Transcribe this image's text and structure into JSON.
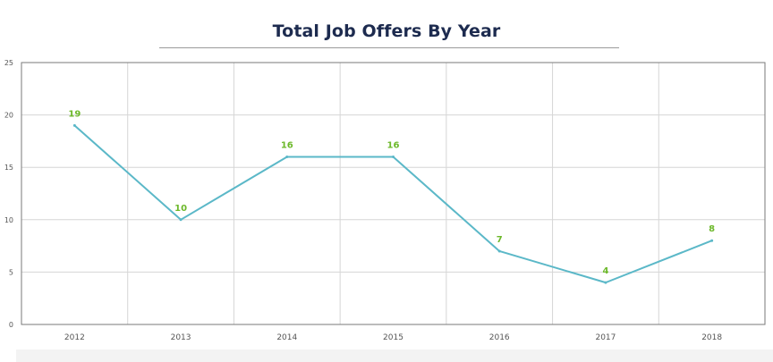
{
  "chart_data": {
    "type": "line",
    "title": "Total Job Offers By Year",
    "xlabel": "",
    "ylabel": "",
    "categories": [
      "2012",
      "2013",
      "2014",
      "2015",
      "2016",
      "2017",
      "2018"
    ],
    "series": [
      {
        "values": [
          19,
          10,
          16,
          16,
          7,
          4,
          8
        ]
      }
    ],
    "ylim": [
      0,
      25
    ],
    "yticks": [
      "0",
      "5",
      "10",
      "15",
      "20",
      "25"
    ],
    "grid": true,
    "legend": "none",
    "data_labels": [
      "19",
      "10",
      "16",
      "16",
      "7",
      "4",
      "8"
    ],
    "colors": {
      "line": "#5bb8c8",
      "labels": "#6cb82a",
      "title": "#1d2b4f",
      "grid": "#d6d6d6",
      "frame": "#7a7a7a"
    }
  }
}
